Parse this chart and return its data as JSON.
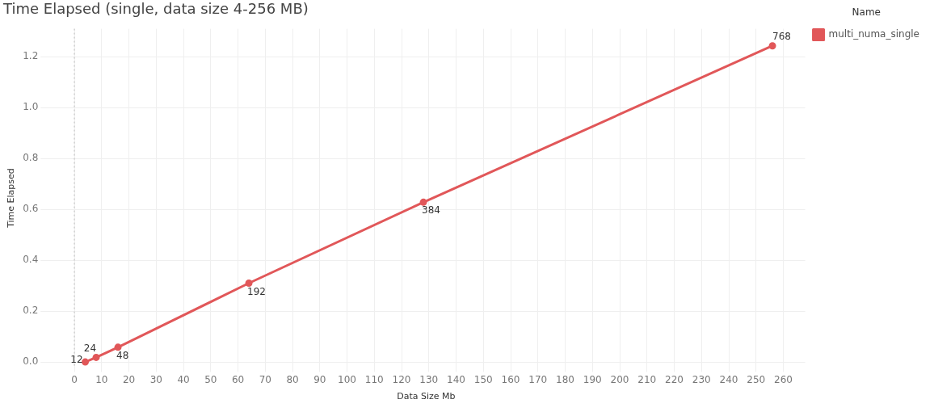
{
  "chart_data": {
    "type": "line",
    "title": "Time Elapsed (single, data size 4-256 MB)",
    "xlabel": "Data Size Mb",
    "ylabel": "Time Elapsed",
    "legend_title": "Name",
    "x": [
      4,
      8,
      16,
      64,
      128,
      256
    ],
    "series": [
      {
        "name": "multi_numa_single",
        "color": "#e15759",
        "values": [
          0.0,
          0.018,
          0.058,
          0.31,
          0.628,
          1.243
        ]
      }
    ],
    "annotations": [
      {
        "text": "12",
        "x": 4,
        "y": 0.0
      },
      {
        "text": "24",
        "x": 8,
        "y": 0.018
      },
      {
        "text": "48",
        "x": 16,
        "y": 0.058
      },
      {
        "text": "192",
        "x": 64,
        "y": 0.31
      },
      {
        "text": "384",
        "x": 128,
        "y": 0.628
      },
      {
        "text": "768",
        "x": 256,
        "y": 1.243
      }
    ],
    "xlim": [
      -10,
      268
    ],
    "xticks": [
      0,
      10,
      20,
      30,
      40,
      50,
      60,
      70,
      80,
      90,
      100,
      110,
      120,
      130,
      140,
      150,
      160,
      170,
      180,
      190,
      200,
      210,
      220,
      230,
      240,
      250,
      260
    ],
    "ylim": [
      -0.02,
      1.31
    ],
    "yticks": [
      {
        "value": 0,
        "label": "0.0"
      },
      0.2,
      0.4,
      0.6,
      0.8,
      {
        "value": 1,
        "label": "1.0"
      },
      1.2
    ],
    "ref_lines": [
      {
        "axis": "x",
        "value": 0,
        "color": "#bbbbbb",
        "line_style": "dotted"
      }
    ],
    "grid": true,
    "legend": "top right",
    "marker": "circle",
    "line_style": "solid"
  }
}
